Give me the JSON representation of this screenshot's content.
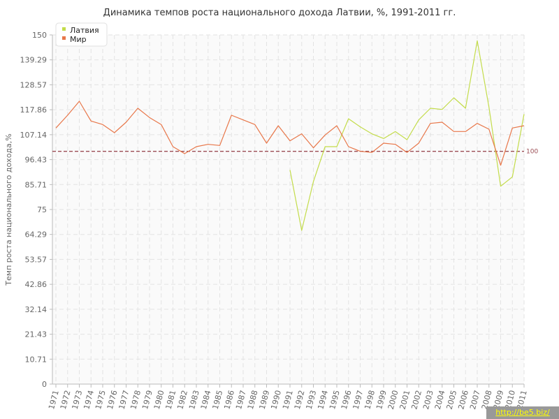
{
  "chart_data": {
    "type": "line",
    "title": "Динамика темпов роста национального дохода Латвии, %, 1991-2011 гг.",
    "xlabel": "",
    "ylabel": "Темп роста национального дохода,%",
    "x": [
      1971,
      1972,
      1973,
      1974,
      1975,
      1976,
      1977,
      1978,
      1979,
      1980,
      1981,
      1982,
      1983,
      1984,
      1985,
      1986,
      1987,
      1988,
      1989,
      1990,
      1991,
      1992,
      1993,
      1994,
      1995,
      1996,
      1997,
      1998,
      1999,
      2000,
      2001,
      2002,
      2003,
      2004,
      2005,
      2006,
      2007,
      2008,
      2009,
      2010,
      2011
    ],
    "yticks": [
      "0",
      "10.71",
      "21.43",
      "32.14",
      "42.86",
      "53.57",
      "64.29",
      "75",
      "85.71",
      "96.43",
      "107.14",
      "117.86",
      "128.57",
      "139.29",
      "150"
    ],
    "ylim": [
      0,
      150
    ],
    "grid": true,
    "legend_position": "top-left",
    "reference_line": {
      "value": 100,
      "label": "100",
      "color": "#9b4d54"
    },
    "series": [
      {
        "name": "Латвия",
        "color": "#c3dc4a",
        "values": [
          null,
          null,
          null,
          null,
          null,
          null,
          null,
          null,
          null,
          null,
          null,
          null,
          null,
          null,
          null,
          null,
          null,
          null,
          null,
          null,
          92,
          66,
          87,
          102,
          102,
          114,
          110.5,
          107.5,
          105.5,
          108.5,
          105,
          113.5,
          118.5,
          118,
          123,
          118.5,
          147.5,
          119,
          85,
          89,
          116
        ]
      },
      {
        "name": "Мир",
        "color": "#e8774a",
        "values": [
          110,
          115.5,
          121.5,
          113,
          111.5,
          108,
          112.5,
          118.5,
          114.5,
          111.5,
          102,
          99,
          102,
          103,
          102.5,
          115.5,
          113.5,
          111.5,
          103.5,
          111,
          104.5,
          107.5,
          101.5,
          107,
          111,
          102,
          100,
          99.5,
          103.5,
          103,
          99.5,
          103.5,
          112,
          112.5,
          108.5,
          108.5,
          112,
          109.5,
          94,
          110,
          111
        ]
      }
    ]
  },
  "watermark": "http://be5.biz/"
}
